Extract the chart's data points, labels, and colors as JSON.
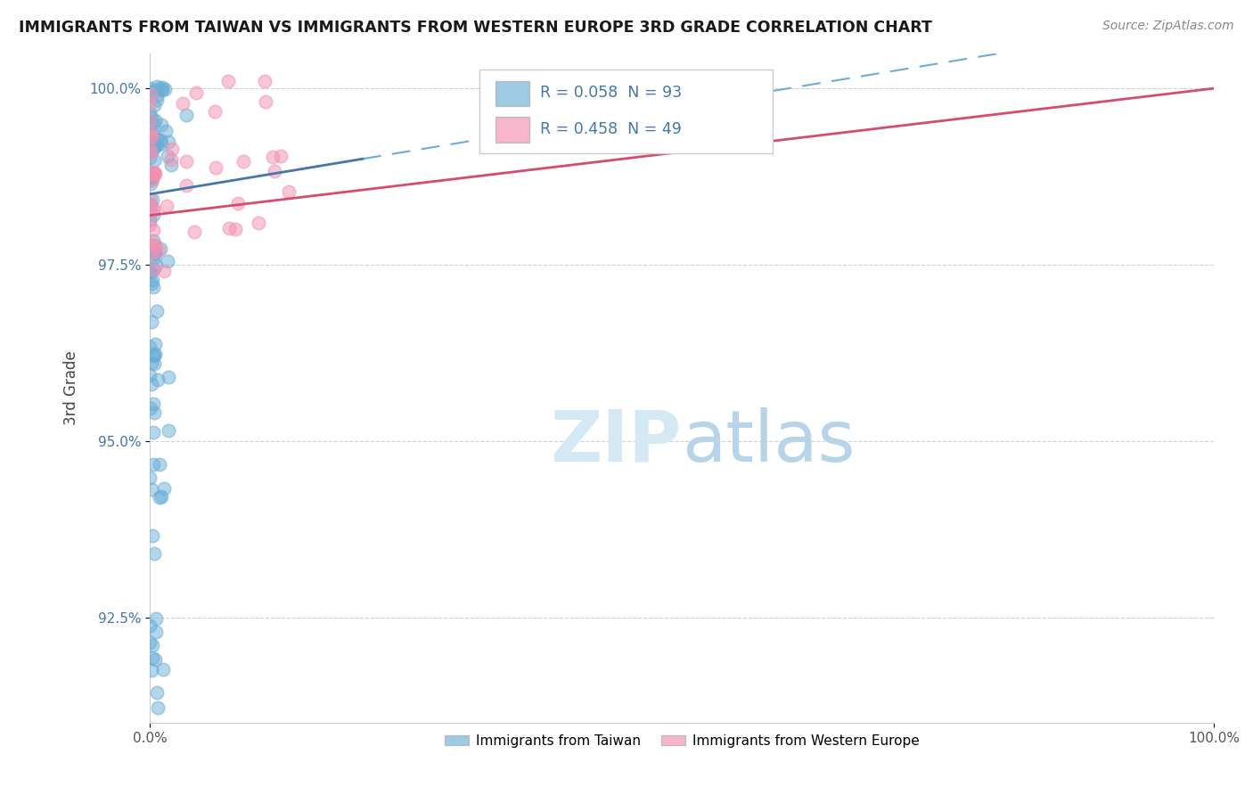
{
  "title": "IMMIGRANTS FROM TAIWAN VS IMMIGRANTS FROM WESTERN EUROPE 3RD GRADE CORRELATION CHART",
  "source_text": "Source: ZipAtlas.com",
  "ylabel": "3rd Grade",
  "xlim": [
    0.0,
    1.0
  ],
  "ylim": [
    0.91,
    1.005
  ],
  "x_tick_labels": [
    "0.0%",
    "100.0%"
  ],
  "x_tick_positions": [
    0.0,
    1.0
  ],
  "y_tick_labels": [
    "92.5%",
    "95.0%",
    "97.5%",
    "100.0%"
  ],
  "y_tick_values": [
    0.925,
    0.95,
    0.975,
    1.0
  ],
  "blue_color": "#6aaed6",
  "pink_color": "#f48fb1",
  "blue_line_color": "#4477aa",
  "pink_line_color": "#d64c6f",
  "tick_color": "#4477aa",
  "background_color": "#ffffff",
  "grid_color": "#cccccc",
  "watermark_color": "#d5e9f5",
  "legend_label_blue": "R = 0.058  N = 93",
  "legend_label_pink": "R = 0.458  N = 49",
  "bottom_legend_blue": "Immigrants from Taiwan",
  "bottom_legend_pink": "Immigrants from Western Europe"
}
